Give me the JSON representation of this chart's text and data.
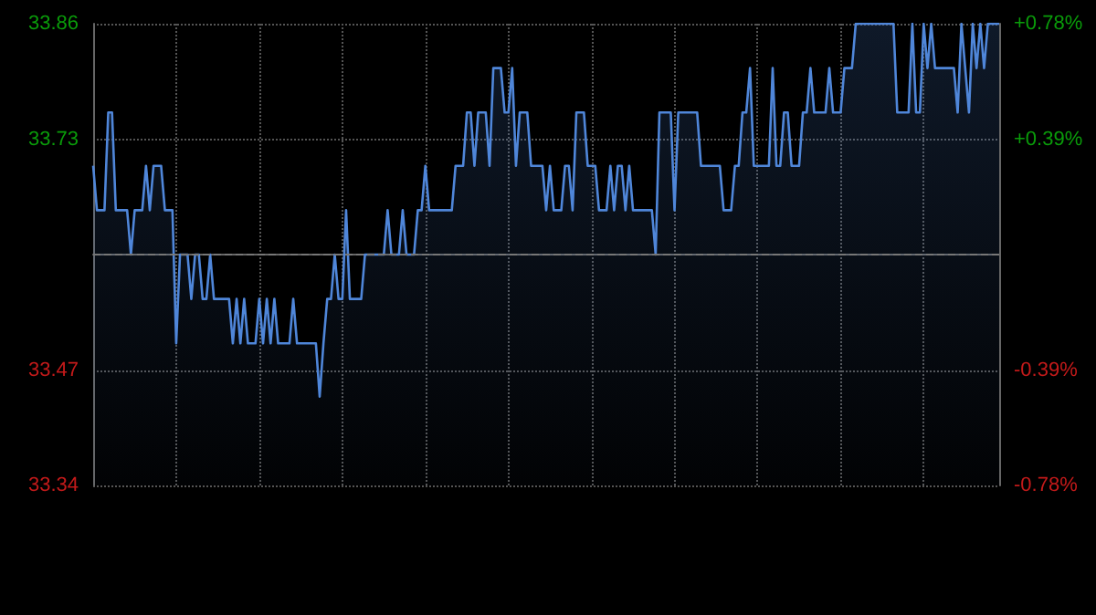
{
  "chart_data": {
    "type": "area",
    "categories": [
      null,
      null,
      null,
      null,
      null,
      null,
      null,
      null,
      null,
      null,
      null,
      null,
      null,
      null,
      null,
      null,
      null,
      null,
      null,
      null,
      null,
      null,
      null,
      null,
      null,
      null,
      null,
      null,
      null,
      null,
      null,
      null,
      null,
      null,
      null,
      null,
      null,
      null,
      null,
      null,
      null,
      null,
      null,
      null,
      null,
      null,
      null,
      null,
      null,
      null,
      null,
      null,
      null,
      null,
      null,
      null,
      null,
      null,
      null,
      null,
      null,
      null,
      null,
      null,
      null,
      null,
      null,
      null,
      null,
      null,
      null,
      null,
      null,
      null,
      null,
      null,
      null,
      null,
      null,
      null,
      null,
      null,
      null,
      null,
      null,
      null,
      null,
      null,
      null,
      null,
      null,
      null,
      null,
      null,
      null,
      null,
      null,
      null,
      null,
      null,
      null,
      null,
      null,
      null,
      null,
      null,
      null,
      null,
      null,
      null,
      null,
      null,
      null,
      null,
      null,
      null,
      null,
      null,
      null,
      null,
      null,
      null,
      null,
      null,
      null,
      null,
      null,
      null,
      null,
      null,
      null,
      null,
      null,
      null,
      null,
      null,
      null,
      null,
      null,
      null,
      null,
      null,
      null,
      null,
      null,
      null,
      null,
      null,
      null,
      null,
      null,
      null,
      null,
      null,
      null,
      null,
      null,
      null,
      null,
      null,
      null,
      null,
      null,
      null,
      null,
      null,
      null,
      null,
      null,
      null,
      null,
      null,
      null,
      null,
      null,
      null,
      null,
      null,
      null,
      null,
      null,
      null,
      null,
      null,
      null,
      null,
      null,
      null,
      null,
      null,
      null,
      null,
      null,
      null,
      null,
      null,
      null,
      null,
      null,
      null,
      null,
      null,
      null,
      null,
      null,
      null,
      null,
      null,
      null,
      null,
      null,
      null,
      null,
      null,
      null,
      null,
      null,
      null,
      null,
      null,
      null,
      null,
      null,
      null,
      null,
      null,
      null,
      null,
      null,
      null,
      null,
      null,
      null,
      null,
      null,
      null,
      null,
      null,
      null,
      null,
      null
    ],
    "series": [
      {
        "color": "#4f86d9",
        "values": [
          33.7,
          33.65,
          33.65,
          33.65,
          33.76,
          33.76,
          33.65,
          33.65,
          33.65,
          33.65,
          33.6,
          33.65,
          33.65,
          33.65,
          33.7,
          33.65,
          33.7,
          33.7,
          33.7,
          33.65,
          33.65,
          33.65,
          33.5,
          33.6,
          33.6,
          33.6,
          33.55,
          33.6,
          33.6,
          33.55,
          33.55,
          33.6,
          33.55,
          33.55,
          33.55,
          33.55,
          33.55,
          33.5,
          33.55,
          33.5,
          33.55,
          33.5,
          33.5,
          33.5,
          33.55,
          33.5,
          33.55,
          33.5,
          33.55,
          33.5,
          33.5,
          33.5,
          33.5,
          33.55,
          33.5,
          33.5,
          33.5,
          33.5,
          33.5,
          33.5,
          33.44,
          33.5,
          33.55,
          33.55,
          33.6,
          33.55,
          33.55,
          33.65,
          33.55,
          33.55,
          33.55,
          33.55,
          33.6,
          33.6,
          33.6,
          33.6,
          33.6,
          33.6,
          33.65,
          33.6,
          33.6,
          33.6,
          33.65,
          33.6,
          33.6,
          33.6,
          33.65,
          33.65,
          33.7,
          33.65,
          33.65,
          33.65,
          33.65,
          33.65,
          33.65,
          33.65,
          33.7,
          33.7,
          33.7,
          33.76,
          33.76,
          33.7,
          33.76,
          33.76,
          33.76,
          33.7,
          33.81,
          33.81,
          33.81,
          33.76,
          33.76,
          33.81,
          33.7,
          33.76,
          33.76,
          33.76,
          33.7,
          33.7,
          33.7,
          33.7,
          33.65,
          33.7,
          33.65,
          33.65,
          33.65,
          33.7,
          33.7,
          33.65,
          33.76,
          33.76,
          33.76,
          33.7,
          33.7,
          33.7,
          33.65,
          33.65,
          33.65,
          33.7,
          33.65,
          33.7,
          33.7,
          33.65,
          33.7,
          33.65,
          33.65,
          33.65,
          33.65,
          33.65,
          33.65,
          33.6,
          33.76,
          33.76,
          33.76,
          33.76,
          33.65,
          33.76,
          33.76,
          33.76,
          33.76,
          33.76,
          33.76,
          33.7,
          33.7,
          33.7,
          33.7,
          33.7,
          33.7,
          33.65,
          33.65,
          33.65,
          33.7,
          33.7,
          33.76,
          33.76,
          33.81,
          33.7,
          33.7,
          33.7,
          33.7,
          33.7,
          33.81,
          33.7,
          33.7,
          33.76,
          33.76,
          33.7,
          33.7,
          33.7,
          33.76,
          33.76,
          33.81,
          33.76,
          33.76,
          33.76,
          33.76,
          33.81,
          33.76,
          33.76,
          33.76,
          33.81,
          33.81,
          33.81,
          33.86,
          33.86,
          33.86,
          33.86,
          33.86,
          33.86,
          33.86,
          33.86,
          33.86,
          33.86,
          33.86,
          33.76,
          33.76,
          33.76,
          33.76,
          33.86,
          33.76,
          33.76,
          33.86,
          33.81,
          33.86,
          33.81,
          33.81,
          33.81,
          33.81,
          33.81,
          33.81,
          33.76,
          33.86,
          33.81,
          33.76,
          33.86,
          33.81,
          33.86,
          33.81,
          33.86,
          33.86,
          33.86,
          33.86
        ]
      }
    ],
    "ylim": [
      33.34,
      33.86
    ],
    "yticks": [
      33.34,
      33.47,
      33.73,
      33.86
    ],
    "y2lim": [
      -0.78,
      0.78
    ],
    "y2ticks": [
      {
        "value": -0.78,
        "label": "-0.78%"
      },
      {
        "value": -0.39,
        "label": "-0.39%"
      },
      {
        "value": 0.39,
        "label": "+0.39%"
      },
      {
        "value": 0.78,
        "label": "+0.78%"
      }
    ],
    "ref_lines": [
      {
        "axis": "y",
        "value": 33.6,
        "color": "#777777",
        "line_style": "dashed"
      }
    ],
    "grid": true,
    "marker": "none",
    "line_style": "solid"
  }
}
